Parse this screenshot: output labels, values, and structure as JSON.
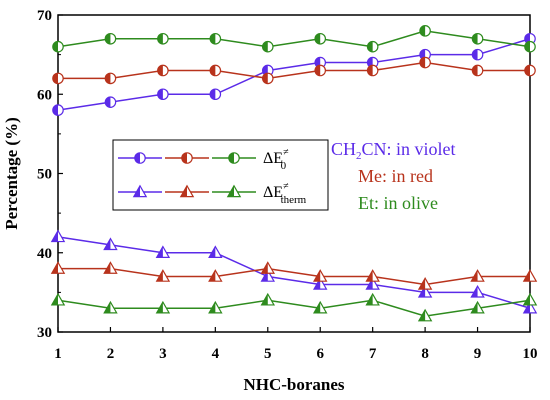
{
  "chart_data": {
    "type": "line",
    "xlabel": "NHC-boranes",
    "ylabel": "Percentage (%)",
    "xlim": [
      1,
      10
    ],
    "ylim": [
      30,
      70
    ],
    "x_ticks": [
      1,
      2,
      3,
      4,
      5,
      6,
      7,
      8,
      9,
      10
    ],
    "y_ticks": [
      30,
      40,
      50,
      60,
      70
    ],
    "x": [
      1,
      2,
      3,
      4,
      5,
      6,
      7,
      8,
      9,
      10
    ],
    "series": [
      {
        "group": "dE0",
        "color": "#5b2be8",
        "marker": "circle-half",
        "values": [
          58,
          59,
          60,
          60,
          63,
          64,
          64,
          65,
          65,
          67
        ]
      },
      {
        "group": "dE0",
        "color": "#b8331c",
        "marker": "circle-half",
        "values": [
          62,
          62,
          63,
          63,
          62,
          63,
          63,
          64,
          63,
          63
        ]
      },
      {
        "group": "dE0",
        "color": "#2e8b1e",
        "marker": "circle-half",
        "values": [
          66,
          67,
          67,
          67,
          66,
          67,
          66,
          68,
          67,
          66
        ]
      },
      {
        "group": "dEtherm",
        "color": "#5b2be8",
        "marker": "triangle-half",
        "values": [
          42,
          41,
          40,
          40,
          37,
          36,
          36,
          35,
          35,
          33
        ]
      },
      {
        "group": "dEtherm",
        "color": "#b8331c",
        "marker": "triangle-half",
        "values": [
          38,
          38,
          37,
          37,
          38,
          37,
          37,
          36,
          37,
          37
        ]
      },
      {
        "group": "dEtherm",
        "color": "#2e8b1e",
        "marker": "triangle-half",
        "values": [
          34,
          33,
          33,
          33,
          34,
          33,
          34,
          32,
          33,
          34
        ]
      }
    ],
    "legend": {
      "position": "middle-left",
      "entries": [
        {
          "label": "ΔE",
          "sup": "≠",
          "sub": "0",
          "marker": "circle-half"
        },
        {
          "label": "ΔE",
          "sup": "≠",
          "sub": "therm",
          "marker": "triangle-half"
        }
      ]
    },
    "annotations": [
      {
        "text": "CH",
        "sub": "2",
        "text2": "CN: in violet",
        "color": "#5b2be8"
      },
      {
        "text": "Me: in red",
        "color": "#b8331c"
      },
      {
        "text": "Et: in olive",
        "color": "#2e8b1e"
      }
    ],
    "grid": false
  }
}
